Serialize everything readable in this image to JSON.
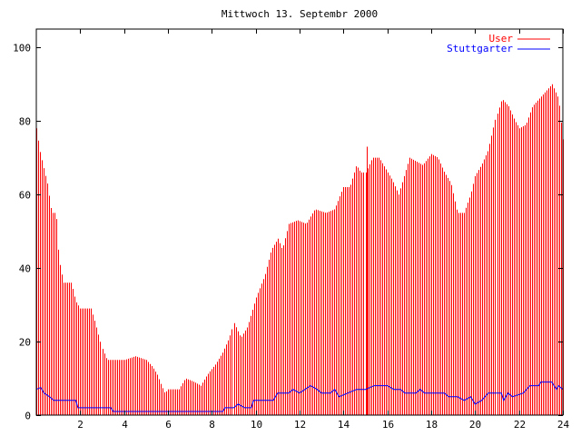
{
  "chart_data": {
    "type": "bar",
    "title": "Mittwoch 13. Septembr 2000",
    "xlim": [
      0,
      24
    ],
    "ylim": [
      0,
      105
    ],
    "xticks": [
      2,
      4,
      6,
      8,
      10,
      12,
      14,
      16,
      18,
      20,
      22,
      24
    ],
    "yticks": [
      0,
      20,
      40,
      60,
      80,
      100
    ],
    "grid": false,
    "legend_position": "top-right",
    "series": [
      {
        "name": "User",
        "style": "impulses",
        "color": "#ff0000",
        "keypoints": [
          [
            0.0,
            78
          ],
          [
            0.15,
            72
          ],
          [
            0.3,
            68
          ],
          [
            0.5,
            63
          ],
          [
            0.7,
            55
          ],
          [
            0.9,
            55
          ],
          [
            1.0,
            45
          ],
          [
            1.1,
            40
          ],
          [
            1.25,
            36
          ],
          [
            1.6,
            36
          ],
          [
            1.8,
            31
          ],
          [
            2.0,
            29
          ],
          [
            2.5,
            29
          ],
          [
            2.7,
            25
          ],
          [
            3.0,
            18
          ],
          [
            3.2,
            15
          ],
          [
            3.6,
            15
          ],
          [
            4.0,
            15
          ],
          [
            4.5,
            16
          ],
          [
            5.0,
            15
          ],
          [
            5.3,
            13
          ],
          [
            5.5,
            11
          ],
          [
            5.7,
            8
          ],
          [
            5.85,
            6
          ],
          [
            6.0,
            7
          ],
          [
            6.5,
            7
          ],
          [
            6.8,
            10
          ],
          [
            7.2,
            9
          ],
          [
            7.5,
            8
          ],
          [
            7.8,
            11
          ],
          [
            8.2,
            14
          ],
          [
            8.5,
            17
          ],
          [
            8.8,
            21
          ],
          [
            9.0,
            25
          ],
          [
            9.3,
            21
          ],
          [
            9.6,
            24
          ],
          [
            10.0,
            32
          ],
          [
            10.4,
            38
          ],
          [
            10.7,
            45
          ],
          [
            11.0,
            48
          ],
          [
            11.2,
            45
          ],
          [
            11.5,
            52
          ],
          [
            11.9,
            53
          ],
          [
            12.3,
            52
          ],
          [
            12.7,
            56
          ],
          [
            13.2,
            55
          ],
          [
            13.6,
            56
          ],
          [
            14.0,
            62
          ],
          [
            14.3,
            62
          ],
          [
            14.6,
            68
          ],
          [
            14.8,
            66
          ],
          [
            15.0,
            66
          ],
          [
            15.3,
            70
          ],
          [
            15.6,
            70
          ],
          [
            15.9,
            67
          ],
          [
            16.2,
            64
          ],
          [
            16.5,
            60
          ],
          [
            16.8,
            66
          ],
          [
            17.0,
            70
          ],
          [
            17.3,
            69
          ],
          [
            17.6,
            68
          ],
          [
            18.0,
            71
          ],
          [
            18.3,
            70
          ],
          [
            18.6,
            66
          ],
          [
            18.9,
            63
          ],
          [
            19.2,
            55
          ],
          [
            19.5,
            55
          ],
          [
            19.8,
            60
          ],
          [
            20.0,
            65
          ],
          [
            20.3,
            68
          ],
          [
            20.6,
            72
          ],
          [
            20.9,
            80
          ],
          [
            21.2,
            86
          ],
          [
            21.5,
            84
          ],
          [
            21.8,
            80
          ],
          [
            22.0,
            78
          ],
          [
            22.3,
            79
          ],
          [
            22.6,
            84
          ],
          [
            22.9,
            86
          ],
          [
            23.2,
            88
          ],
          [
            23.5,
            90
          ],
          [
            23.8,
            86
          ],
          [
            24.0,
            75
          ]
        ],
        "spikes": [
          [
            15.05,
            73
          ]
        ]
      },
      {
        "name": "Stuttgarter",
        "style": "lines",
        "color": "#0000ff",
        "keypoints": [
          [
            0.0,
            7
          ],
          [
            0.2,
            7.5
          ],
          [
            0.35,
            6
          ],
          [
            0.6,
            5
          ],
          [
            0.8,
            4
          ],
          [
            1.8,
            4
          ],
          [
            1.9,
            2
          ],
          [
            3.4,
            2
          ],
          [
            3.5,
            1
          ],
          [
            8.5,
            1
          ],
          [
            8.6,
            2
          ],
          [
            9.0,
            2
          ],
          [
            9.2,
            3
          ],
          [
            9.5,
            2
          ],
          [
            9.8,
            2
          ],
          [
            9.9,
            4
          ],
          [
            10.8,
            4
          ],
          [
            11.0,
            6
          ],
          [
            11.5,
            6
          ],
          [
            11.7,
            7
          ],
          [
            12.0,
            6
          ],
          [
            12.5,
            8
          ],
          [
            12.8,
            7
          ],
          [
            13.0,
            6
          ],
          [
            13.4,
            6
          ],
          [
            13.6,
            7
          ],
          [
            13.8,
            5
          ],
          [
            14.2,
            6
          ],
          [
            14.6,
            7
          ],
          [
            15.0,
            7
          ],
          [
            15.4,
            8
          ],
          [
            16.0,
            8
          ],
          [
            16.3,
            7
          ],
          [
            16.6,
            7
          ],
          [
            16.8,
            6
          ],
          [
            17.3,
            6
          ],
          [
            17.5,
            7
          ],
          [
            17.7,
            6
          ],
          [
            18.6,
            6
          ],
          [
            18.8,
            5
          ],
          [
            19.2,
            5
          ],
          [
            19.5,
            4
          ],
          [
            19.8,
            5
          ],
          [
            20.0,
            3
          ],
          [
            20.3,
            4
          ],
          [
            20.6,
            6
          ],
          [
            21.2,
            6
          ],
          [
            21.3,
            4
          ],
          [
            21.5,
            6
          ],
          [
            21.7,
            5
          ],
          [
            22.2,
            6
          ],
          [
            22.5,
            8
          ],
          [
            22.9,
            8
          ],
          [
            23.0,
            9
          ],
          [
            23.5,
            9
          ],
          [
            23.7,
            7
          ],
          [
            23.8,
            8
          ],
          [
            24.0,
            7
          ]
        ]
      }
    ]
  }
}
